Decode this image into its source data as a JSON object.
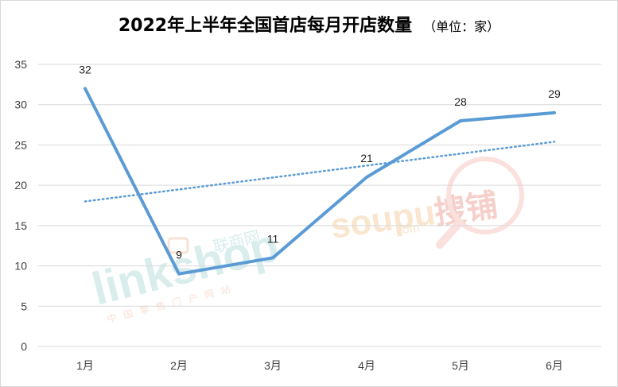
{
  "chart_data": {
    "type": "line",
    "title": "2022年上半年全国首店每月开店数量",
    "subtitle": "（单位：家）",
    "categories": [
      "1月",
      "2月",
      "3月",
      "4月",
      "5月",
      "6月"
    ],
    "series": [
      {
        "values": [
          32,
          9,
          11,
          21,
          28,
          29
        ],
        "color": "#5b9bd5"
      }
    ],
    "trendline": {
      "style": "dotted",
      "color": "#5b9bd5",
      "start": 18,
      "end": 25.4
    },
    "ylim": [
      0,
      35
    ],
    "yticks": [
      0,
      5,
      10,
      15,
      20,
      25,
      30,
      35
    ],
    "grid": true,
    "legend": "none"
  },
  "watermarks": {
    "left": {
      "text": "linkshop",
      "cn": "联商网",
      "tagline": "中国零售门户网站"
    },
    "right": {
      "text": "soupu",
      "cn": "搜铺",
      "domain": ".com"
    }
  }
}
